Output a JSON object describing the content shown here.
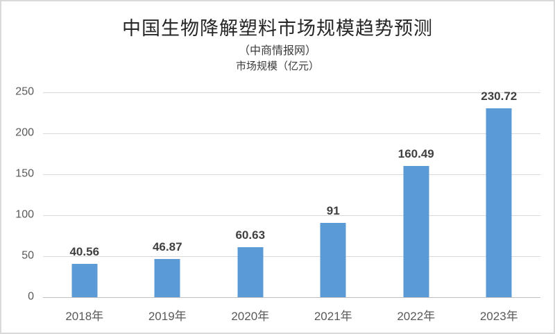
{
  "chart": {
    "title": "中国生物降解塑料市场规模趋势预测",
    "subtitle": "（中商情报网）",
    "axis_title": "市场规模（亿元）"
  },
  "chart_data": {
    "type": "bar",
    "title": "中国生物降解塑料市场规模趋势预测",
    "subtitle": "（中商情报网）",
    "ylabel": "市场规模（亿元）",
    "xlabel": "",
    "categories": [
      "2018年",
      "2019年",
      "2020年",
      "2021年",
      "2022年",
      "2023年"
    ],
    "values": [
      40.56,
      46.87,
      60.63,
      91,
      160.49,
      230.72
    ],
    "data_labels": [
      "40.56",
      "46.87",
      "60.63",
      "91",
      "160.49",
      "230.72"
    ],
    "ylim": [
      0,
      250
    ],
    "yticks": [
      0,
      50,
      100,
      150,
      200,
      250
    ],
    "grid": true,
    "legend": false,
    "bar_color": "#5B9BD5",
    "gridline_color": "#D9D9D9",
    "axis_line_color": "#BFBFBF",
    "tick_label_color": "#595959",
    "data_label_color": "#404040",
    "frame_border_color": "#D9D9D9"
  }
}
